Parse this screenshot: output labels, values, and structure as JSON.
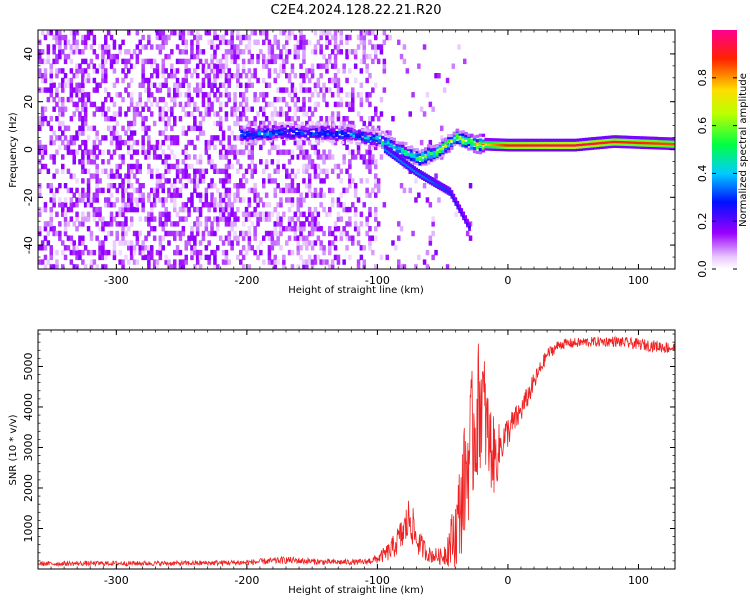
{
  "title": "C2E4.2024.128.22.21.R20",
  "colors": {
    "snr_line": "#ee2222",
    "axis": "#000000",
    "background": "#ffffff"
  },
  "chart_data": [
    {
      "type": "heatmap",
      "xlabel": "Height of straight line (km)",
      "ylabel": "Frequency (Hz)",
      "xlim": [
        -360,
        128
      ],
      "ylim": [
        -50,
        50
      ],
      "x_ticks": [
        -300,
        -200,
        -100,
        0,
        100
      ],
      "y_ticks": [
        -40,
        -20,
        0,
        20,
        40
      ],
      "grid": false,
      "colorbar": {
        "label": "Normalized spectral amplitude",
        "range": [
          0,
          1
        ],
        "ticks": [
          "0.0",
          "0.2",
          "0.4",
          "0.6",
          "0.8"
        ],
        "tick_values": [
          0,
          0.2,
          0.4,
          0.6,
          0.8
        ],
        "colormap": "rainbow (white-violet-blue-cyan-green-yellow-red-magenta)"
      },
      "dominant_trace": [
        {
          "x": -205,
          "y": 6,
          "amp": 0.3
        },
        {
          "x": -180,
          "y": 7,
          "amp": 0.35
        },
        {
          "x": -160,
          "y": 7,
          "amp": 0.3
        },
        {
          "x": -120,
          "y": 6,
          "amp": 0.35
        },
        {
          "x": -100,
          "y": 4,
          "amp": 0.45
        },
        {
          "x": -85,
          "y": 0,
          "amp": 0.5
        },
        {
          "x": -70,
          "y": -4,
          "amp": 0.5
        },
        {
          "x": -55,
          "y": -1,
          "amp": 0.55
        },
        {
          "x": -40,
          "y": 5,
          "amp": 0.6
        },
        {
          "x": -25,
          "y": 2,
          "amp": 0.7
        },
        {
          "x": 0,
          "y": 1.5,
          "amp": 0.9
        },
        {
          "x": 50,
          "y": 1.5,
          "amp": 0.95
        },
        {
          "x": 80,
          "y": 3,
          "amp": 0.9
        },
        {
          "x": 128,
          "y": 2,
          "amp": 0.85
        }
      ],
      "secondary_trace": [
        {
          "x": -95,
          "y": 0,
          "amp": 0.35
        },
        {
          "x": -70,
          "y": -10,
          "amp": 0.35
        },
        {
          "x": -45,
          "y": -18,
          "amp": 0.3
        },
        {
          "x": -30,
          "y": -33,
          "amp": 0.25
        }
      ]
    },
    {
      "type": "line",
      "xlabel": "Height of straight line (km)",
      "ylabel": "SNR (10 * v/v)",
      "xlim": [
        -360,
        128
      ],
      "ylim": [
        0,
        5900
      ],
      "x_ticks": [
        -300,
        -200,
        -100,
        0,
        100
      ],
      "y_ticks": [
        1000,
        2000,
        3000,
        4000,
        5000
      ],
      "grid": false,
      "series": [
        {
          "x": [
            -360,
            -300,
            -250,
            -200,
            -170,
            -140,
            -110,
            -100,
            -90,
            -80,
            -75,
            -70,
            -60,
            -50,
            -40,
            -35,
            -30,
            -25,
            -20,
            -15,
            -10,
            -5,
            0,
            10,
            20,
            30,
            40,
            60,
            80,
            100,
            128
          ],
          "y": [
            130,
            140,
            140,
            160,
            220,
            170,
            170,
            250,
            450,
            900,
            1300,
            700,
            350,
            300,
            900,
            1800,
            2800,
            3600,
            4300,
            3200,
            2700,
            3100,
            3400,
            3900,
            4600,
            5300,
            5550,
            5600,
            5620,
            5550,
            5450
          ],
          "noise_amplitude": [
            60,
            60,
            60,
            70,
            90,
            70,
            70,
            120,
            250,
            450,
            600,
            350,
            200,
            200,
            900,
            1400,
            1600,
            1800,
            1600,
            1200,
            900,
            500,
            400,
            300,
            250,
            150,
            130,
            120,
            130,
            140,
            150
          ]
        }
      ]
    }
  ]
}
